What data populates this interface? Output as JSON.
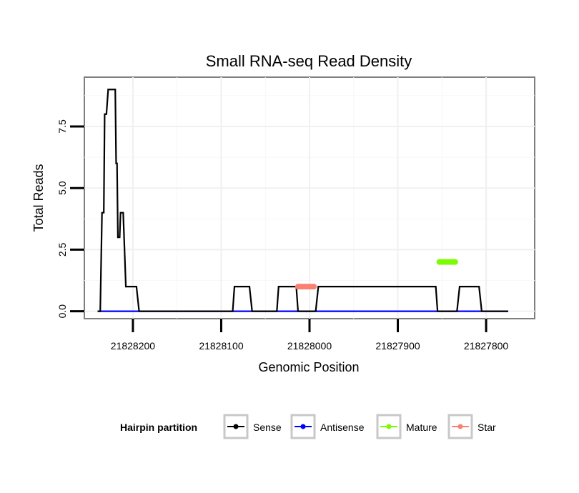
{
  "chart_data": {
    "type": "line",
    "title": "Small RNA-seq Read Density",
    "xlabel": "Genomic Position",
    "ylabel": "Total Reads",
    "xlim": [
      21828255,
      21827745
    ],
    "ylim": [
      -0.3,
      9.5
    ],
    "x_reversed": true,
    "grid": true,
    "x_ticks": [
      21828200,
      21828100,
      21828000,
      21827900,
      21827800
    ],
    "x_tick_labels": [
      "21828200",
      "21828100",
      "21828000",
      "21827900",
      "21827800"
    ],
    "y_ticks": [
      0,
      2.5,
      5,
      7.5
    ],
    "y_tick_labels": [
      "0.0",
      "2.5",
      "5.0",
      "7.5"
    ],
    "legend": {
      "title": "Hairpin partition",
      "position": "bottom",
      "entries": [
        {
          "name": "Sense",
          "color": "#000000"
        },
        {
          "name": "Antisense",
          "color": "#0000ff"
        },
        {
          "name": "Mature",
          "color": "#7cfc00"
        },
        {
          "name": "Star",
          "color": "#fa8072"
        }
      ]
    },
    "series": [
      {
        "name": "Sense",
        "color": "#000000",
        "x": [
          21828240,
          21828237,
          21828235,
          21828233,
          21828232,
          21828230,
          21828228,
          21828227,
          21828224,
          21828222,
          21828220,
          21828219,
          21828218,
          21828217,
          21828215,
          21828214,
          21828211,
          21828208,
          21828205,
          21828202,
          21828199,
          21828196,
          21828193,
          21828090,
          21828087,
          21828085,
          21828070,
          21828068,
          21828065,
          21828040,
          21828037,
          21828035,
          21828018,
          21828015,
          21828013,
          21827995,
          21827993,
          21827990,
          21827860,
          21827857,
          21827855,
          21827835,
          21827833,
          21827830,
          21827810,
          21827808,
          21827805,
          21827780,
          21827778,
          21827775
        ],
        "y": [
          0,
          0,
          4,
          4,
          8,
          8,
          9,
          9,
          9,
          9,
          9,
          6,
          6,
          3,
          3,
          4,
          4,
          1,
          1,
          1,
          1,
          1,
          0,
          0,
          0,
          1,
          1,
          1,
          0,
          0,
          0,
          1,
          1,
          1,
          0,
          0,
          0,
          1,
          1,
          1,
          0,
          0,
          0,
          1,
          1,
          1,
          0,
          0,
          0,
          0
        ]
      },
      {
        "name": "Antisense",
        "color": "#0000ff",
        "x": [
          21828240,
          21827775
        ],
        "y": [
          0,
          0
        ]
      },
      {
        "name": "Mature",
        "color": "#7cfc00",
        "x": [
          21827853,
          21827851,
          21827849,
          21827847,
          21827845,
          21827843,
          21827841,
          21827839,
          21827837,
          21827835
        ],
        "y": [
          2,
          2,
          2,
          2,
          2,
          2,
          2,
          2,
          2,
          2
        ]
      },
      {
        "name": "Star",
        "color": "#fa8072",
        "x": [
          21828013,
          21828011,
          21828009,
          21828007,
          21828005,
          21828003,
          21828001,
          21827999,
          21827997,
          21827995
        ],
        "y": [
          1,
          1,
          1,
          1,
          1,
          1,
          1,
          1,
          1,
          1
        ]
      }
    ]
  }
}
